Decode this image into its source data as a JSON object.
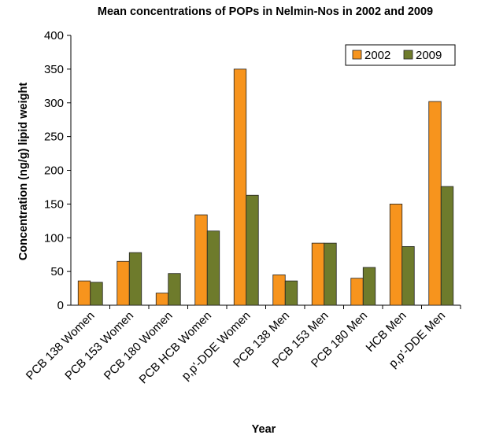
{
  "chart_data": {
    "type": "bar",
    "title": "Mean concentrations of POPs in Nelmin-Nos in 2002 and 2009",
    "xlabel": "Year",
    "ylabel": "Concentration (ng/g) lipid weight",
    "ylim": [
      0,
      400
    ],
    "yticks": [
      0,
      50,
      100,
      150,
      200,
      250,
      300,
      350,
      400
    ],
    "grid": false,
    "legend_position": "top-right",
    "categories": [
      "PCB 138 Women",
      "PCB 153 Women",
      "PCB 180 Women",
      "PCB HCB Women",
      "p,p'-DDE Women",
      "PCB 138 Men",
      "PCB 153 Men",
      "PCB 180 Men",
      "HCB Men",
      "p,p'-DDE Men"
    ],
    "series": [
      {
        "name": "2002",
        "color": "#F7941D",
        "values": [
          36,
          65,
          18,
          134,
          350,
          45,
          92,
          40,
          150,
          302
        ]
      },
      {
        "name": "2009",
        "color": "#6E7B2C",
        "values": [
          34,
          78,
          47,
          110,
          163,
          36,
          92,
          56,
          87,
          176
        ]
      }
    ]
  }
}
